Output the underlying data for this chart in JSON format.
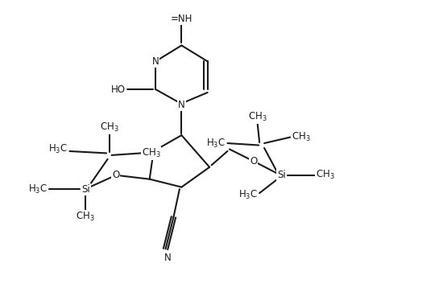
{
  "bg": "#ffffff",
  "lc": "#1a1a1a",
  "lw": 1.5,
  "fs": 8.5,
  "figsize": [
    5.5,
    3.63
  ],
  "xlim": [
    0,
    11
  ],
  "ylim": [
    0,
    7.26
  ]
}
